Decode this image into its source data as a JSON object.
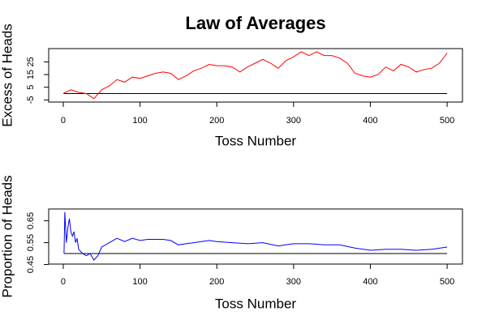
{
  "chart_data": [
    {
      "type": "line",
      "title": "Law of Averages",
      "xlabel": "Toss Number",
      "ylabel": "Excess of Heads",
      "x": [
        0,
        10,
        20,
        30,
        40,
        50,
        60,
        70,
        80,
        90,
        100,
        110,
        120,
        130,
        140,
        150,
        160,
        170,
        180,
        190,
        200,
        210,
        220,
        230,
        240,
        250,
        260,
        270,
        280,
        290,
        300,
        310,
        320,
        330,
        340,
        350,
        360,
        370,
        380,
        390,
        400,
        410,
        420,
        430,
        440,
        450,
        460,
        470,
        480,
        490,
        500
      ],
      "series": [
        {
          "color": "#ff0000",
          "values": [
            0,
            3,
            1,
            0,
            -4,
            3,
            6,
            11,
            9,
            13,
            12,
            14,
            16,
            17,
            16,
            11,
            14,
            18,
            20,
            23,
            22,
            22,
            21,
            17,
            21,
            24,
            27,
            24,
            20,
            26,
            29,
            33,
            30,
            33,
            30,
            30,
            28,
            24,
            16,
            14,
            13,
            15,
            21,
            18,
            23,
            21,
            17,
            19,
            20,
            24,
            32
          ]
        }
      ],
      "hline": 0,
      "xlim": [
        -19,
        520
      ],
      "ylim": [
        -6.7,
        35.5
      ],
      "xticks": [
        0,
        100,
        200,
        300,
        400,
        500
      ],
      "yticks": [
        -5,
        5,
        15,
        25
      ]
    },
    {
      "type": "line",
      "xlabel": "Toss Number",
      "ylabel": "Proportion of Heads",
      "x": [
        1,
        2,
        4,
        6,
        8,
        10,
        12,
        14,
        16,
        18,
        20,
        25,
        30,
        35,
        40,
        45,
        50,
        60,
        70,
        80,
        90,
        100,
        110,
        120,
        130,
        140,
        150,
        160,
        170,
        180,
        190,
        200,
        220,
        240,
        260,
        280,
        300,
        320,
        340,
        360,
        380,
        400,
        420,
        440,
        460,
        480,
        500
      ],
      "series": [
        {
          "color": "#0000ff",
          "values": [
            0.5,
            0.69,
            0.55,
            0.62,
            0.66,
            0.6,
            0.58,
            0.6,
            0.55,
            0.57,
            0.52,
            0.5,
            0.49,
            0.5,
            0.47,
            0.49,
            0.53,
            0.55,
            0.57,
            0.555,
            0.57,
            0.56,
            0.565,
            0.565,
            0.565,
            0.56,
            0.54,
            0.545,
            0.55,
            0.555,
            0.56,
            0.555,
            0.55,
            0.545,
            0.55,
            0.535,
            0.545,
            0.545,
            0.54,
            0.54,
            0.525,
            0.515,
            0.52,
            0.52,
            0.515,
            0.52,
            0.53
          ]
        }
      ],
      "hline": 0.5,
      "xlim": [
        -19,
        520
      ],
      "ylim": [
        0.452,
        0.704
      ],
      "xticks": [
        0,
        100,
        200,
        300,
        400,
        500
      ],
      "yticks": [
        0.45,
        0.55,
        0.65
      ]
    }
  ]
}
